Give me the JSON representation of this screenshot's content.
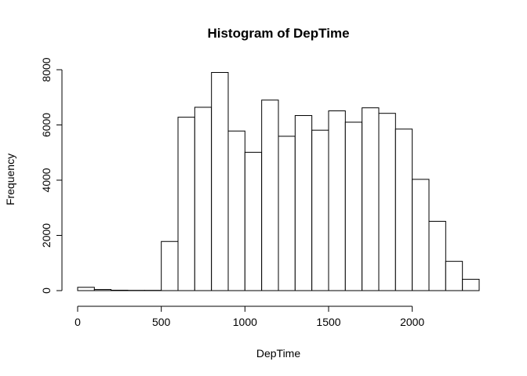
{
  "chart_data": {
    "type": "bar",
    "title": "Histogram of DepTime",
    "xlabel": "DepTime",
    "ylabel": "Frequency",
    "bin_width": 100,
    "x_range": [
      0,
      2400
    ],
    "ylim": [
      0,
      8000
    ],
    "x_ticks": [
      0,
      500,
      1000,
      1500,
      2000
    ],
    "y_ticks": [
      0,
      2000,
      4000,
      6000,
      8000
    ],
    "bins": [
      {
        "start": 0,
        "end": 100,
        "count": 120
      },
      {
        "start": 100,
        "end": 200,
        "count": 40
      },
      {
        "start": 200,
        "end": 300,
        "count": 15
      },
      {
        "start": 300,
        "end": 400,
        "count": 10
      },
      {
        "start": 400,
        "end": 500,
        "count": 10
      },
      {
        "start": 500,
        "end": 600,
        "count": 1780
      },
      {
        "start": 600,
        "end": 700,
        "count": 6280
      },
      {
        "start": 700,
        "end": 800,
        "count": 6640
      },
      {
        "start": 800,
        "end": 900,
        "count": 7900
      },
      {
        "start": 900,
        "end": 1000,
        "count": 5780
      },
      {
        "start": 1000,
        "end": 1100,
        "count": 5010
      },
      {
        "start": 1100,
        "end": 1200,
        "count": 6900
      },
      {
        "start": 1200,
        "end": 1300,
        "count": 5590
      },
      {
        "start": 1300,
        "end": 1400,
        "count": 6340
      },
      {
        "start": 1400,
        "end": 1500,
        "count": 5810
      },
      {
        "start": 1500,
        "end": 1600,
        "count": 6510
      },
      {
        "start": 1600,
        "end": 1700,
        "count": 6100
      },
      {
        "start": 1700,
        "end": 1800,
        "count": 6620
      },
      {
        "start": 1800,
        "end": 1900,
        "count": 6420
      },
      {
        "start": 1900,
        "end": 2000,
        "count": 5850
      },
      {
        "start": 2000,
        "end": 2100,
        "count": 4030
      },
      {
        "start": 2100,
        "end": 2200,
        "count": 2510
      },
      {
        "start": 2200,
        "end": 2300,
        "count": 1060
      },
      {
        "start": 2300,
        "end": 2400,
        "count": 410
      }
    ]
  }
}
